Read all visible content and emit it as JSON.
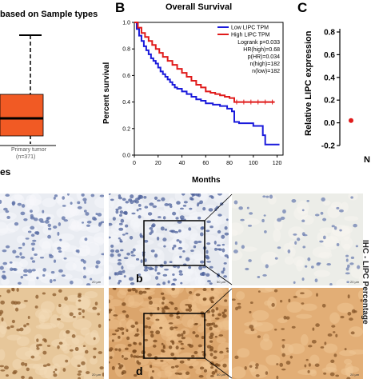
{
  "panel_a": {
    "title": "based on Sample types",
    "tick_label": "Primary tumor",
    "n_label": "(n=371)",
    "xlabel": "es",
    "box_color": "#f15a24"
  },
  "panel_b": {
    "letter": "B",
    "chart_data": {
      "type": "line",
      "title": "Overall Survival",
      "xlabel": "Months",
      "ylabel": "Percent survival",
      "xlim": [
        0,
        125
      ],
      "ylim": [
        0,
        1.0
      ],
      "x_ticks": [
        "0",
        "20",
        "40",
        "60",
        "80",
        "100",
        "120"
      ],
      "y_ticks": [
        "0.0",
        "0.2",
        "0.4",
        "0.6",
        "0.8",
        "1.0"
      ],
      "legend_position": "top-right",
      "legend": [
        "Low LIPC TPM",
        "High LIPC TPM"
      ],
      "stats": [
        "Logrank p=0.033",
        "HR(high)=0.68",
        "p(HR)=0.034",
        "n(high)=182",
        "n(low)=182"
      ],
      "series": [
        {
          "name": "Low LIPC TPM",
          "color": "#1a1adb",
          "points": [
            [
              0,
              1.0
            ],
            [
              2,
              0.95
            ],
            [
              4,
              0.9
            ],
            [
              6,
              0.86
            ],
            [
              8,
              0.82
            ],
            [
              10,
              0.79
            ],
            [
              12,
              0.76
            ],
            [
              14,
              0.73
            ],
            [
              16,
              0.71
            ],
            [
              18,
              0.69
            ],
            [
              20,
              0.66
            ],
            [
              22,
              0.63
            ],
            [
              24,
              0.61
            ],
            [
              26,
              0.59
            ],
            [
              28,
              0.57
            ],
            [
              30,
              0.55
            ],
            [
              32,
              0.53
            ],
            [
              34,
              0.51
            ],
            [
              36,
              0.5
            ],
            [
              40,
              0.48
            ],
            [
              44,
              0.46
            ],
            [
              48,
              0.44
            ],
            [
              52,
              0.42
            ],
            [
              56,
              0.41
            ],
            [
              60,
              0.39
            ],
            [
              66,
              0.38
            ],
            [
              72,
              0.37
            ],
            [
              78,
              0.35
            ],
            [
              82,
              0.33
            ],
            [
              84,
              0.25
            ],
            [
              86,
              0.25
            ],
            [
              88,
              0.24
            ],
            [
              100,
              0.22
            ],
            [
              108,
              0.15
            ],
            [
              110,
              0.08
            ],
            [
              122,
              0.08
            ]
          ]
        },
        {
          "name": "High LIPC TPM",
          "color": "#e01b1b",
          "points": [
            [
              0,
              1.0
            ],
            [
              3,
              0.96
            ],
            [
              6,
              0.92
            ],
            [
              9,
              0.89
            ],
            [
              12,
              0.86
            ],
            [
              15,
              0.83
            ],
            [
              18,
              0.8
            ],
            [
              21,
              0.77
            ],
            [
              24,
              0.74
            ],
            [
              28,
              0.71
            ],
            [
              32,
              0.68
            ],
            [
              36,
              0.65
            ],
            [
              40,
              0.62
            ],
            [
              44,
              0.59
            ],
            [
              48,
              0.56
            ],
            [
              52,
              0.53
            ],
            [
              56,
              0.51
            ],
            [
              60,
              0.48
            ],
            [
              64,
              0.47
            ],
            [
              68,
              0.46
            ],
            [
              72,
              0.45
            ],
            [
              76,
              0.44
            ],
            [
              80,
              0.43
            ],
            [
              84,
              0.4
            ],
            [
              90,
              0.4
            ],
            [
              100,
              0.4
            ],
            [
              110,
              0.4
            ],
            [
              118,
              0.4
            ]
          ]
        }
      ]
    }
  },
  "panel_c": {
    "letter": "C",
    "ylabel": "Relative LIPC expression",
    "y_ticks": [
      "0.8",
      "0.6",
      "0.4",
      "0.2",
      "0.0",
      "-0.2"
    ],
    "category": "N"
  },
  "micrographs": {
    "letters": [
      "b",
      "d"
    ],
    "scale_labels": [
      "20 μm",
      "50 μm",
      "20 μm",
      "20 μm",
      "50 μm",
      "20 μm"
    ],
    "side_label": "IHC - LIPC Percentage"
  }
}
